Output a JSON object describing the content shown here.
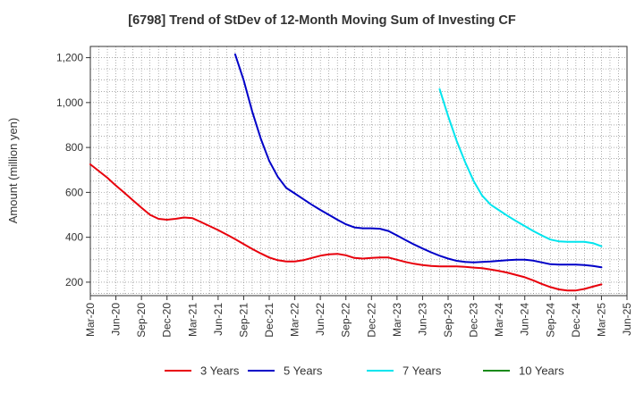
{
  "chart_data": {
    "type": "line",
    "title": "[6798]  Trend of StDev of 12-Month Moving Sum of Investing CF",
    "ylabel": "Amount (million yen)",
    "ylim": [
      140,
      1250
    ],
    "yticks": [
      200,
      400,
      600,
      800,
      1000,
      1200
    ],
    "ytick_labels": [
      "200",
      "400",
      "600",
      "800",
      "1,000",
      "1,200"
    ],
    "x_ticks": [
      "Mar-20",
      "Jun-20",
      "Sep-20",
      "Dec-20",
      "Mar-21",
      "Jun-21",
      "Sep-21",
      "Dec-21",
      "Mar-22",
      "Jun-22",
      "Sep-22",
      "Dec-22",
      "Mar-23",
      "Jun-23",
      "Sep-23",
      "Dec-23",
      "Mar-24",
      "Jun-24",
      "Sep-24",
      "Dec-24",
      "Mar-25",
      "Jun-25"
    ],
    "x_start": "2020-03",
    "x_end": "2025-06",
    "grid": true,
    "legend_position": "bottom",
    "series": [
      {
        "name": "3 Years",
        "color": "#e8000b",
        "data": [
          [
            "2020-03",
            725
          ],
          [
            "2020-04",
            695
          ],
          [
            "2020-05",
            665
          ],
          [
            "2020-06",
            630
          ],
          [
            "2020-07",
            598
          ],
          [
            "2020-08",
            565
          ],
          [
            "2020-09",
            532
          ],
          [
            "2020-10",
            500
          ],
          [
            "2020-11",
            482
          ],
          [
            "2020-12",
            478
          ],
          [
            "2021-01",
            482
          ],
          [
            "2021-02",
            488
          ],
          [
            "2021-03",
            485
          ],
          [
            "2021-04",
            468
          ],
          [
            "2021-05",
            450
          ],
          [
            "2021-06",
            432
          ],
          [
            "2021-07",
            412
          ],
          [
            "2021-08",
            392
          ],
          [
            "2021-09",
            370
          ],
          [
            "2021-10",
            348
          ],
          [
            "2021-11",
            328
          ],
          [
            "2021-12",
            310
          ],
          [
            "2022-01",
            298
          ],
          [
            "2022-02",
            292
          ],
          [
            "2022-03",
            292
          ],
          [
            "2022-04",
            298
          ],
          [
            "2022-05",
            308
          ],
          [
            "2022-06",
            318
          ],
          [
            "2022-07",
            324
          ],
          [
            "2022-08",
            326
          ],
          [
            "2022-09",
            320
          ],
          [
            "2022-10",
            308
          ],
          [
            "2022-11",
            305
          ],
          [
            "2022-12",
            308
          ],
          [
            "2023-01",
            310
          ],
          [
            "2023-02",
            310
          ],
          [
            "2023-03",
            300
          ],
          [
            "2023-04",
            290
          ],
          [
            "2023-05",
            282
          ],
          [
            "2023-06",
            276
          ],
          [
            "2023-07",
            272
          ],
          [
            "2023-08",
            270
          ],
          [
            "2023-09",
            270
          ],
          [
            "2023-10",
            270
          ],
          [
            "2023-11",
            268
          ],
          [
            "2023-12",
            265
          ],
          [
            "2024-01",
            262
          ],
          [
            "2024-02",
            256
          ],
          [
            "2024-03",
            250
          ],
          [
            "2024-04",
            242
          ],
          [
            "2024-05",
            232
          ],
          [
            "2024-06",
            222
          ],
          [
            "2024-07",
            208
          ],
          [
            "2024-08",
            192
          ],
          [
            "2024-09",
            178
          ],
          [
            "2024-10",
            168
          ],
          [
            "2024-11",
            163
          ],
          [
            "2024-12",
            163
          ],
          [
            "2025-01",
            170
          ],
          [
            "2025-02",
            180
          ],
          [
            "2025-03",
            190
          ]
        ]
      },
      {
        "name": "5 Years",
        "color": "#0000c8",
        "data": [
          [
            "2021-08",
            1215
          ],
          [
            "2021-09",
            1100
          ],
          [
            "2021-10",
            960
          ],
          [
            "2021-11",
            840
          ],
          [
            "2021-12",
            740
          ],
          [
            "2022-01",
            670
          ],
          [
            "2022-02",
            620
          ],
          [
            "2022-03",
            595
          ],
          [
            "2022-04",
            570
          ],
          [
            "2022-05",
            545
          ],
          [
            "2022-06",
            522
          ],
          [
            "2022-07",
            500
          ],
          [
            "2022-08",
            478
          ],
          [
            "2022-09",
            458
          ],
          [
            "2022-10",
            444
          ],
          [
            "2022-11",
            440
          ],
          [
            "2022-12",
            440
          ],
          [
            "2023-01",
            438
          ],
          [
            "2023-02",
            428
          ],
          [
            "2023-03",
            408
          ],
          [
            "2023-04",
            388
          ],
          [
            "2023-05",
            368
          ],
          [
            "2023-06",
            350
          ],
          [
            "2023-07",
            333
          ],
          [
            "2023-08",
            318
          ],
          [
            "2023-09",
            305
          ],
          [
            "2023-10",
            295
          ],
          [
            "2023-11",
            290
          ],
          [
            "2023-12",
            288
          ],
          [
            "2024-01",
            290
          ],
          [
            "2024-02",
            292
          ],
          [
            "2024-03",
            295
          ],
          [
            "2024-04",
            298
          ],
          [
            "2024-05",
            300
          ],
          [
            "2024-06",
            300
          ],
          [
            "2024-07",
            296
          ],
          [
            "2024-08",
            288
          ],
          [
            "2024-09",
            280
          ],
          [
            "2024-10",
            278
          ],
          [
            "2024-11",
            278
          ],
          [
            "2024-12",
            278
          ],
          [
            "2025-01",
            276
          ],
          [
            "2025-02",
            272
          ],
          [
            "2025-03",
            266
          ]
        ]
      },
      {
        "name": "7 Years",
        "color": "#00e5ee",
        "data": [
          [
            "2023-08",
            1060
          ],
          [
            "2023-09",
            940
          ],
          [
            "2023-10",
            830
          ],
          [
            "2023-11",
            735
          ],
          [
            "2023-12",
            650
          ],
          [
            "2024-01",
            585
          ],
          [
            "2024-02",
            545
          ],
          [
            "2024-03",
            520
          ],
          [
            "2024-04",
            495
          ],
          [
            "2024-05",
            472
          ],
          [
            "2024-06",
            450
          ],
          [
            "2024-07",
            428
          ],
          [
            "2024-08",
            408
          ],
          [
            "2024-09",
            390
          ],
          [
            "2024-10",
            382
          ],
          [
            "2024-11",
            380
          ],
          [
            "2024-12",
            380
          ],
          [
            "2025-01",
            380
          ],
          [
            "2025-02",
            374
          ],
          [
            "2025-03",
            360
          ]
        ]
      },
      {
        "name": "10 Years",
        "color": "#1a8a1a",
        "data": []
      }
    ]
  }
}
